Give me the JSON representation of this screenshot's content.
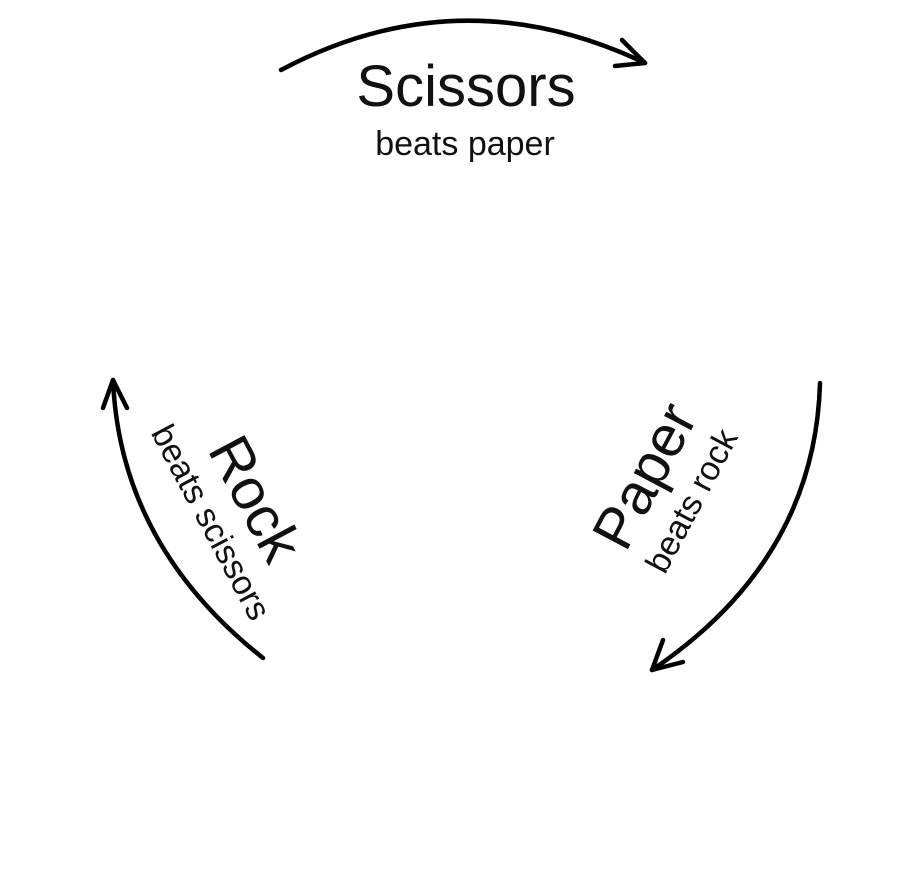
{
  "colors": {
    "stroke": "#000000",
    "text": "#111111",
    "background": "#ffffff"
  },
  "labels": {
    "scissors": {
      "name": "Scissors",
      "beats": "beats paper"
    },
    "paper": {
      "name": "Paper",
      "beats": "beats rock"
    },
    "rock": {
      "name": "Rock",
      "beats": "beats scissors"
    }
  }
}
